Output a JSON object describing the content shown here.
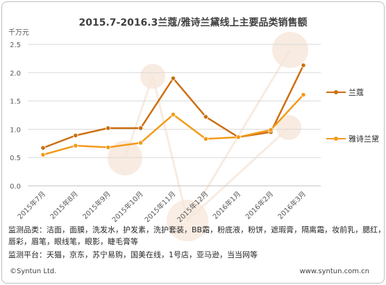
{
  "title": "2015.7-2016.3兰蔻/雅诗兰黛线上主要品类销售额",
  "unit": "千万元",
  "legend": [
    "兰蔻",
    "雅诗兰黛"
  ],
  "notes": {
    "line1": "监测品类：洁面，面膜，洗发水，护发素，洗护套装，BB霜，粉底液，粉饼，遮瑕膏，隔离霜，妆前乳，腮红，",
    "line2": "唇彩，眉笔，眼线笔，眼影，睫毛膏等",
    "line3": "监测平台：天猫，京东，苏宁易购，国美在线，1号店，亚马逊，当当网等"
  },
  "footer": {
    "left": "©Syntun Ltd.",
    "right": "www.syntun.com.cn"
  },
  "colors": {
    "lancome": "#cc6f10",
    "estee": "#f39a1a",
    "grid": "#d9d9d9",
    "watermark": "#f6e6d9"
  },
  "chart_data": {
    "type": "line",
    "title": "2015.7-2016.3兰蔻/雅诗兰黛线上主要品类销售额",
    "ylabel": "千万元",
    "ylim": [
      0,
      2.5
    ],
    "yticks": [
      "0.0",
      "0.5",
      "1.0",
      "1.5",
      "2.0",
      "2.5"
    ],
    "categories": [
      "2015年7月",
      "2015年8月",
      "2015年9月",
      "2015年10月",
      "2015年11月",
      "2015年12月",
      "2016年1月",
      "2016年2月",
      "2016年3月"
    ],
    "series": [
      {
        "name": "兰蔻",
        "values": [
          0.67,
          0.89,
          1.02,
          1.02,
          1.9,
          1.22,
          0.86,
          0.95,
          2.13
        ]
      },
      {
        "name": "雅诗兰黛",
        "values": [
          0.55,
          0.71,
          0.68,
          0.76,
          1.26,
          0.83,
          0.86,
          0.99,
          1.61
        ]
      }
    ],
    "grid": true,
    "legend_position": "right"
  }
}
